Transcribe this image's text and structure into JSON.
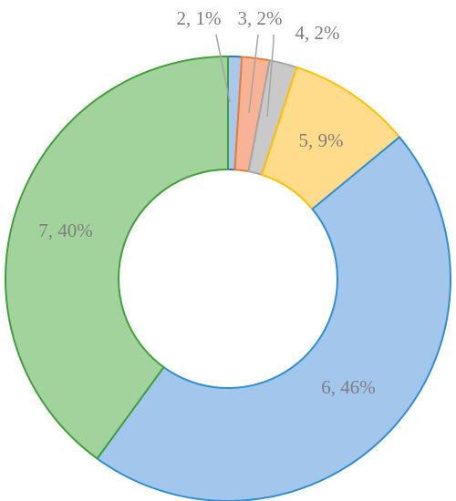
{
  "chart_data": {
    "type": "donut",
    "values": [
      1,
      2,
      2,
      9,
      46,
      40
    ],
    "value_labels": [
      "2, 1%",
      "3, 2%",
      "4, 2%",
      "5, 9%",
      "6, 46%",
      "7, 40%"
    ],
    "colors": [
      "#a9c8ee",
      "#f8b296",
      "#c9c9c9",
      "#ffdc8c",
      "#a2c6ec",
      "#a3d39c"
    ],
    "edge_colors": [
      "#2e75b6",
      "#ed7d31",
      "#a5a5a5",
      "#ffc000",
      "#2e8fd0",
      "#3fa03a"
    ]
  }
}
